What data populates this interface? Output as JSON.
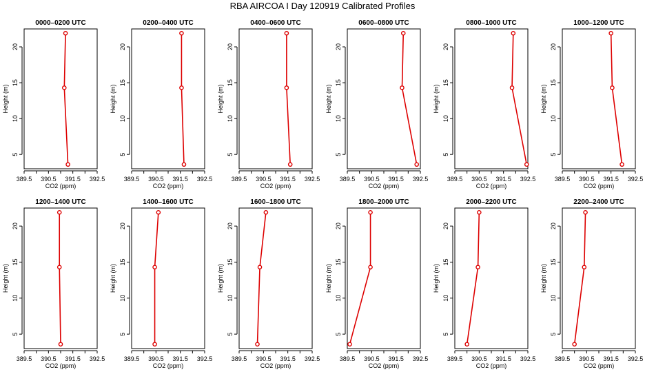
{
  "title": "RBA AIRCOA I  Day 120919  Calibrated Profiles",
  "chart_data": {
    "type": "line",
    "title": "RBA AIRCOA I  Day 120919  Calibrated Profiles",
    "xlabel": "CO2 (ppm)",
    "ylabel": "Height (m)",
    "xlim": [
      389.5,
      392.5
    ],
    "ylim": [
      3,
      22.5
    ],
    "x_ticks": [
      "389.5",
      "390.5",
      "391.5",
      "392.5"
    ],
    "x_ticks_minor": [
      "390.0",
      "391.0",
      "392.0"
    ],
    "y_ticks": [
      "5",
      "10",
      "15",
      "20"
    ],
    "heights": [
      3.6,
      14.3,
      21.9
    ],
    "colors": {
      "line": "#dd0000",
      "axis": "#000000"
    },
    "panels": [
      {
        "title": "0000–0200 UTC",
        "co2": [
          391.3,
          391.15,
          391.2
        ]
      },
      {
        "title": "0200–0400 UTC",
        "co2": [
          391.65,
          391.55,
          391.55
        ]
      },
      {
        "title": "0400–0600 UTC",
        "co2": [
          391.6,
          391.45,
          391.45
        ]
      },
      {
        "title": "0600–0800 UTC",
        "co2": [
          392.35,
          391.75,
          391.8
        ]
      },
      {
        "title": "0800–1000 UTC",
        "co2": [
          392.45,
          391.85,
          391.9
        ]
      },
      {
        "title": "1000–1200 UTC",
        "co2": [
          391.95,
          391.55,
          391.5
        ]
      },
      {
        "title": "1200–1400 UTC",
        "co2": [
          391.0,
          390.95,
          390.95
        ]
      },
      {
        "title": "1400–1600 UTC",
        "co2": [
          390.45,
          390.45,
          390.6
        ]
      },
      {
        "title": "1600–1800 UTC",
        "co2": [
          390.25,
          390.35,
          390.6
        ]
      },
      {
        "title": "1800–2000 UTC",
        "co2": [
          389.6,
          390.45,
          390.45
        ]
      },
      {
        "title": "2000–2200 UTC",
        "co2": [
          390.0,
          390.45,
          390.5
        ]
      },
      {
        "title": "2200–2400 UTC",
        "co2": [
          390.0,
          390.4,
          390.45
        ]
      }
    ]
  }
}
